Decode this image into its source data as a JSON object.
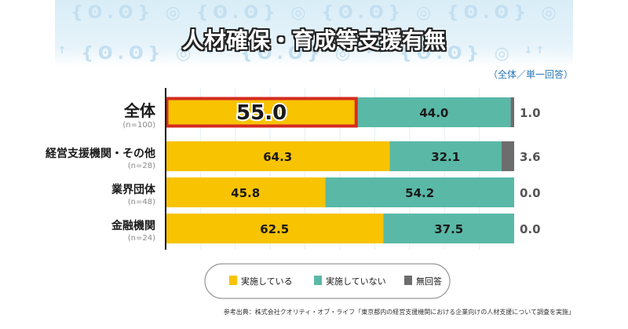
{
  "title": "人材確保・育成等支援有無",
  "note": "（全体／単一回答）",
  "source": "参考出典：株式会社クオリティ・オブ・ライフ「東京都内の経営支援機関における企業向けの人材支援について調査を実施」",
  "colors": {
    "implemented": "#f8c300",
    "not_implemented": "#5ab8a7",
    "no_answer": "#6d6d6d",
    "highlight": "#d52b1e"
  },
  "chart_data": {
    "type": "bar",
    "orientation": "horizontal",
    "stacked": true,
    "xlim": [
      0,
      100
    ],
    "categories": [
      {
        "label": "全体",
        "n": "(n=100)"
      },
      {
        "label": "経営支援機関・その他",
        "n": "(n=28)"
      },
      {
        "label": "業界団体",
        "n": "(n=48)"
      },
      {
        "label": "金融機関",
        "n": "(n=24)"
      }
    ],
    "series": [
      {
        "name": "実施している",
        "values": [
          55.0,
          64.3,
          45.8,
          62.5
        ]
      },
      {
        "name": "実施していない",
        "values": [
          44.0,
          32.1,
          54.2,
          37.5
        ]
      },
      {
        "name": "無回答",
        "values": [
          1.0,
          3.6,
          0.0,
          0.0
        ]
      }
    ],
    "highlight": {
      "category": 0,
      "series": 0
    },
    "legend_position": "bottom"
  }
}
